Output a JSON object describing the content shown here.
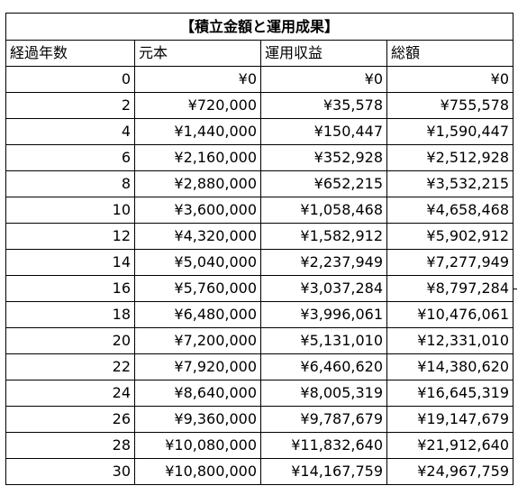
{
  "table": {
    "title": "【積立金額と運用成果】",
    "headers": [
      "経過年数",
      "元本",
      "運用収益",
      "総額"
    ],
    "rows": [
      [
        "0",
        "¥0",
        "¥0",
        "¥0"
      ],
      [
        "2",
        "¥720,000",
        "¥35,578",
        "¥755,578"
      ],
      [
        "4",
        "¥1,440,000",
        "¥150,447",
        "¥1,590,447"
      ],
      [
        "6",
        "¥2,160,000",
        "¥352,928",
        "¥2,512,928"
      ],
      [
        "8",
        "¥2,880,000",
        "¥652,215",
        "¥3,532,215"
      ],
      [
        "10",
        "¥3,600,000",
        "¥1,058,468",
        "¥4,658,468"
      ],
      [
        "12",
        "¥4,320,000",
        "¥1,582,912",
        "¥5,902,912"
      ],
      [
        "14",
        "¥5,040,000",
        "¥2,237,949",
        "¥7,277,949"
      ],
      [
        "16",
        "¥5,760,000",
        "¥3,037,284",
        "¥8,797,284"
      ],
      [
        "18",
        "¥6,480,000",
        "¥3,996,061",
        "¥10,476,061"
      ],
      [
        "20",
        "¥7,200,000",
        "¥5,131,010",
        "¥12,331,010"
      ],
      [
        "22",
        "¥7,920,000",
        "¥6,460,620",
        "¥14,380,620"
      ],
      [
        "24",
        "¥8,640,000",
        "¥8,005,319",
        "¥16,645,319"
      ],
      [
        "26",
        "¥9,360,000",
        "¥9,787,679",
        "¥19,147,679"
      ],
      [
        "28",
        "¥10,080,000",
        "¥11,832,640",
        "¥21,912,640"
      ],
      [
        "30",
        "¥10,800,000",
        "¥14,167,759",
        "¥24,967,759"
      ]
    ]
  }
}
